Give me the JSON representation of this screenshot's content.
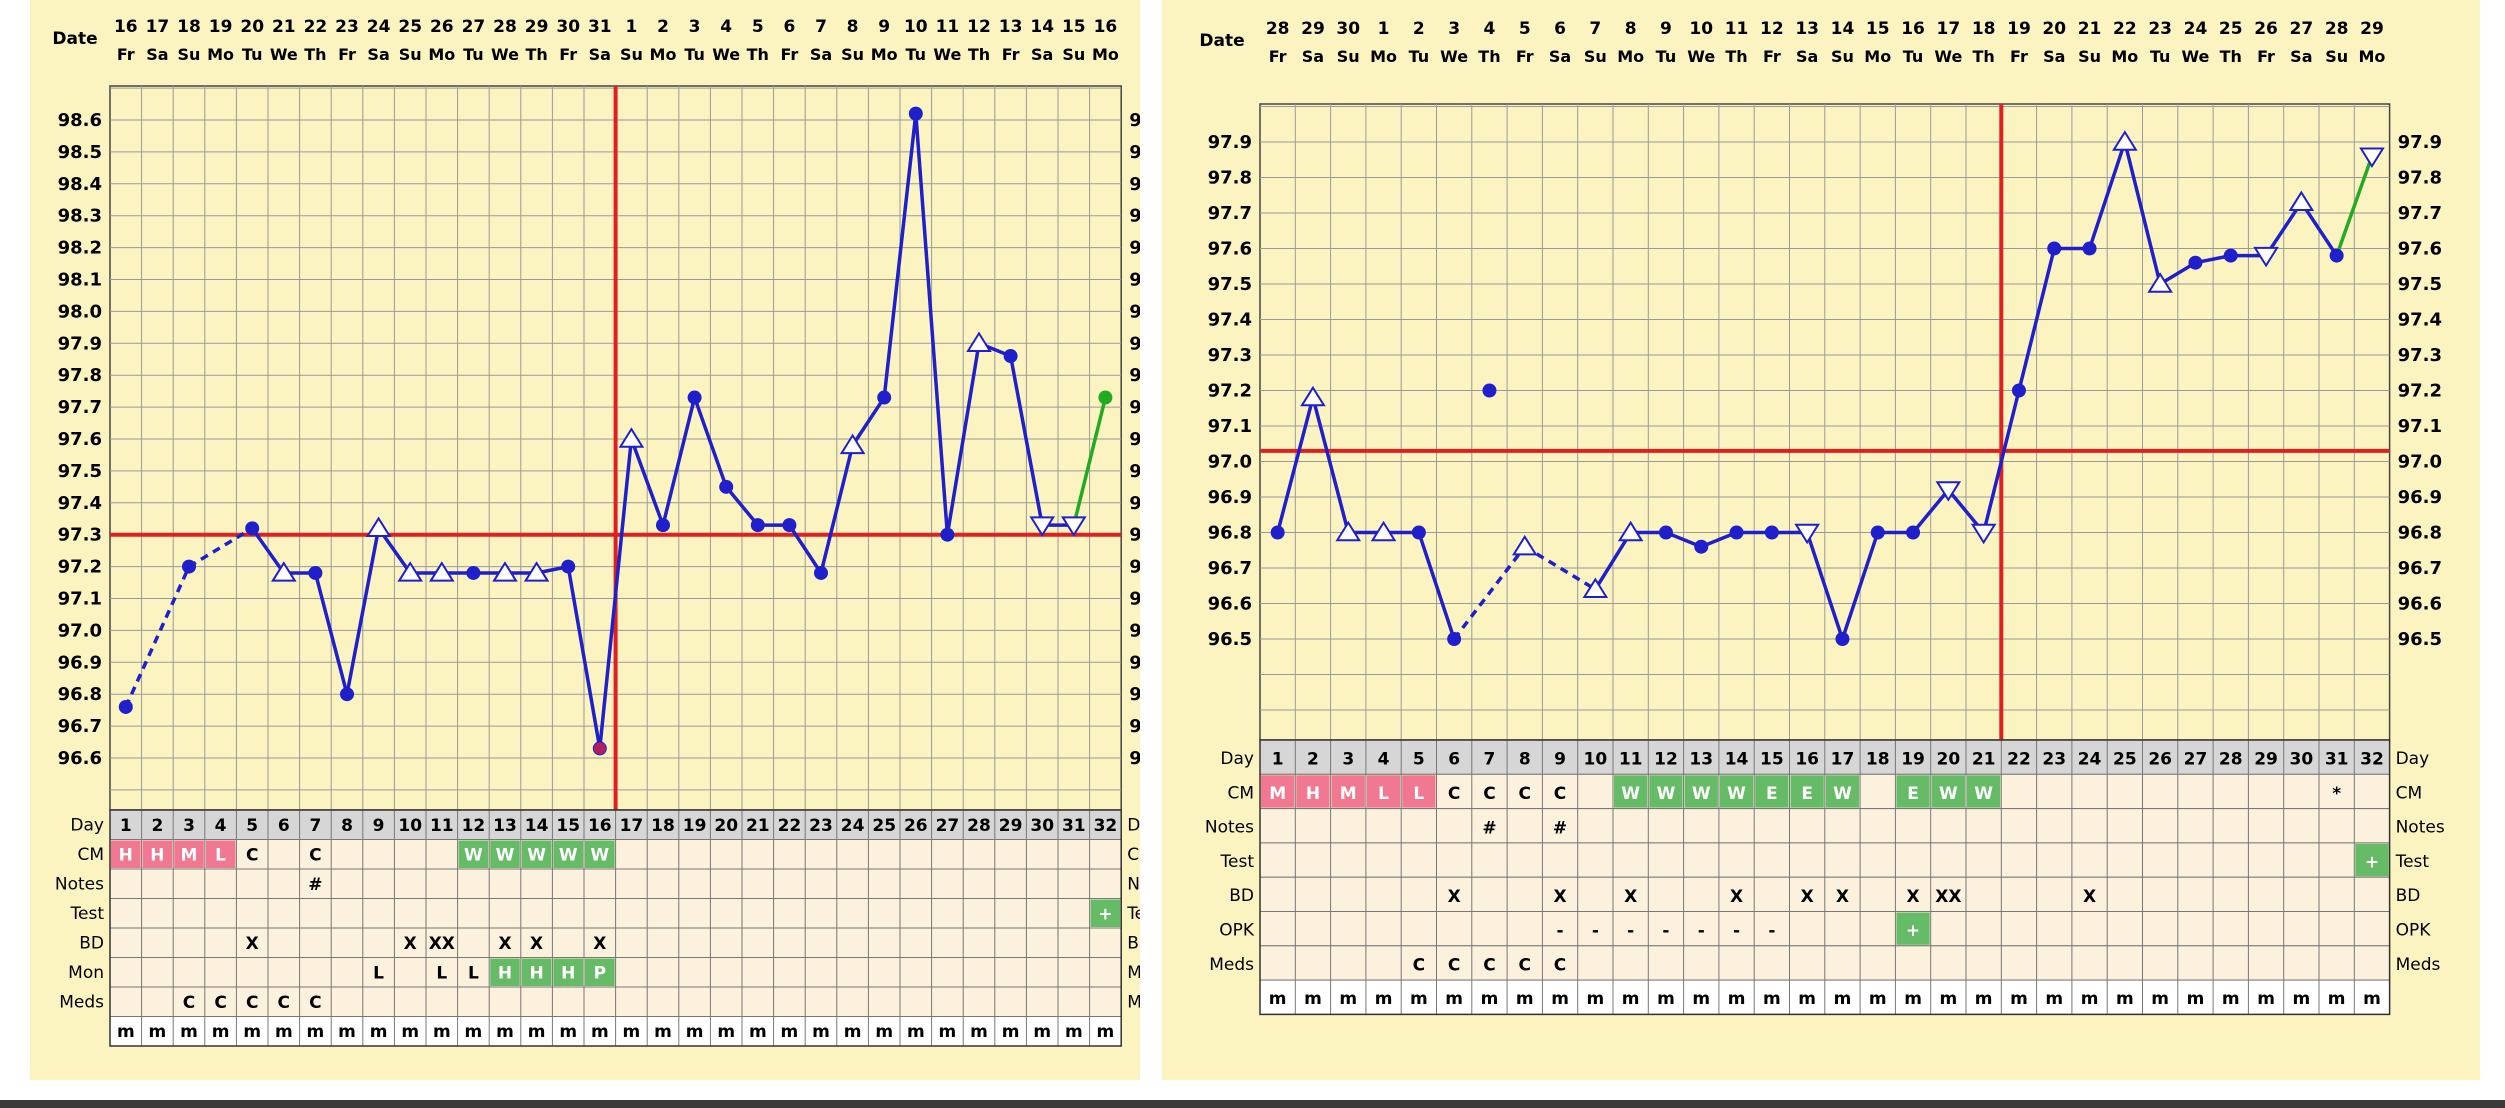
{
  "charts": [
    {
      "id": "left",
      "date_label": "Date",
      "dates": [
        "16",
        "17",
        "18",
        "19",
        "20",
        "21",
        "22",
        "23",
        "24",
        "25",
        "26",
        "27",
        "28",
        "29",
        "30",
        "31",
        "1",
        "2",
        "3",
        "4",
        "5",
        "6",
        "7",
        "8",
        "9",
        "10",
        "11",
        "12",
        "13",
        "14",
        "15",
        "16"
      ],
      "weekdays": [
        "Fr",
        "Sa",
        "Su",
        "Mo",
        "Tu",
        "We",
        "Th",
        "Fr",
        "Sa",
        "Su",
        "Mo",
        "Tu",
        "We",
        "Th",
        "Fr",
        "Sa",
        "Su",
        "Mo",
        "Tu",
        "We",
        "Th",
        "Fr",
        "Sa",
        "Su",
        "Mo",
        "Tu",
        "We",
        "Th",
        "Fr",
        "Sa",
        "Su",
        "Mo"
      ],
      "temp_ticks": [
        "98.6",
        "98.5",
        "98.4",
        "98.3",
        "98.2",
        "98.1",
        "98.0",
        "97.9",
        "97.8",
        "97.7",
        "97.6",
        "97.5",
        "97.4",
        "97.3",
        "97.2",
        "97.1",
        "97.0",
        "96.9",
        "96.8",
        "96.7",
        "96.6"
      ],
      "row_labels": [
        "Day",
        "CM",
        "Notes",
        "Test",
        "BD",
        "Mon",
        "Meds"
      ],
      "rows": {
        "day": [
          "1",
          "2",
          "3",
          "4",
          "5",
          "6",
          "7",
          "8",
          "9",
          "10",
          "11",
          "12",
          "13",
          "14",
          "15",
          "16",
          "17",
          "18",
          "19",
          "20",
          "21",
          "22",
          "23",
          "24",
          "25",
          "26",
          "27",
          "28",
          "29",
          "30",
          "31",
          "32"
        ],
        "cm": [
          "H",
          "H",
          "M",
          "L",
          "C",
          "",
          "C",
          "",
          "",
          "",
          "",
          "W",
          "W",
          "W",
          "W",
          "W",
          "",
          "",
          "",
          "",
          "",
          "",
          "",
          "",
          "",
          "",
          "",
          "",
          "",
          "",
          "",
          ""
        ],
        "notes": [
          "",
          "",
          "",
          "",
          "",
          "",
          "#",
          "",
          "",
          "",
          "",
          "",
          "",
          "",
          "",
          "",
          "",
          "",
          "",
          "",
          "",
          "",
          "",
          "",
          "",
          "",
          "",
          "",
          "",
          "",
          "",
          ""
        ],
        "test": [
          "",
          "",
          "",
          "",
          "",
          "",
          "",
          "",
          "",
          "",
          "",
          "",
          "",
          "",
          "",
          "",
          "",
          "",
          "",
          "",
          "",
          "",
          "",
          "",
          "",
          "",
          "",
          "",
          "",
          "",
          "",
          "+"
        ],
        "bd": [
          "",
          "",
          "",
          "",
          "X",
          "",
          "",
          "",
          "",
          "X",
          "XX",
          "",
          "X",
          "X",
          "",
          "X",
          "",
          "",
          "",
          "",
          "",
          "",
          "",
          "",
          "",
          "",
          "",
          "",
          "",
          "",
          "",
          ""
        ],
        "mon": [
          "",
          "",
          "",
          "",
          "",
          "",
          "",
          "",
          "L",
          "",
          "L",
          "L",
          "H",
          "H",
          "H",
          "P",
          "",
          "",
          "",
          "",
          "",
          "",
          "",
          "",
          "",
          "",
          "",
          "",
          "",
          "",
          "",
          ""
        ],
        "meds": [
          "",
          "",
          "C",
          "C",
          "C",
          "C",
          "C",
          "",
          "",
          "",
          "",
          "",
          "",
          "",
          "",
          "",
          "",
          "",
          "",
          "",
          "",
          "",
          "",
          "",
          "",
          "",
          "",
          "",
          "",
          "",
          "",
          ""
        ]
      },
      "last_row": [
        "m",
        "m",
        "m",
        "m",
        "m",
        "m",
        "m",
        "m",
        "m",
        "m",
        "m",
        "m",
        "m",
        "m",
        "m",
        "m",
        "m",
        "m",
        "m",
        "m",
        "m",
        "m",
        "m",
        "m",
        "m",
        "m",
        "m",
        "m",
        "m",
        "m",
        "m",
        "m"
      ]
    },
    {
      "id": "right",
      "date_label": "Date",
      "dates": [
        "28",
        "29",
        "30",
        "1",
        "2",
        "3",
        "4",
        "5",
        "6",
        "7",
        "8",
        "9",
        "10",
        "11",
        "12",
        "13",
        "14",
        "15",
        "16",
        "17",
        "18",
        "19",
        "20",
        "21",
        "22",
        "23",
        "24",
        "25",
        "26",
        "27",
        "28",
        "29"
      ],
      "weekdays": [
        "Fr",
        "Sa",
        "Su",
        "Mo",
        "Tu",
        "We",
        "Th",
        "Fr",
        "Sa",
        "Su",
        "Mo",
        "Tu",
        "We",
        "Th",
        "Fr",
        "Sa",
        "Su",
        "Mo",
        "Tu",
        "We",
        "Th",
        "Fr",
        "Sa",
        "Su",
        "Mo",
        "Tu",
        "We",
        "Th",
        "Fr",
        "Sa",
        "Su",
        "Mo"
      ],
      "temp_ticks": [
        "97.9",
        "97.8",
        "97.7",
        "97.6",
        "97.5",
        "97.4",
        "97.3",
        "97.2",
        "97.1",
        "97.0",
        "96.9",
        "96.8",
        "96.7",
        "96.6",
        "96.5"
      ],
      "row_labels": [
        "Day",
        "CM",
        "Notes",
        "Test",
        "BD",
        "OPK",
        "Meds"
      ],
      "rows": {
        "day": [
          "1",
          "2",
          "3",
          "4",
          "5",
          "6",
          "7",
          "8",
          "9",
          "10",
          "11",
          "12",
          "13",
          "14",
          "15",
          "16",
          "17",
          "18",
          "19",
          "20",
          "21",
          "22",
          "23",
          "24",
          "25",
          "26",
          "27",
          "28",
          "29",
          "30",
          "31",
          "32"
        ],
        "cm": [
          "M",
          "H",
          "M",
          "L",
          "L",
          "C",
          "C",
          "C",
          "C",
          "",
          "W",
          "W",
          "W",
          "W",
          "E",
          "E",
          "W",
          "",
          "E",
          "W",
          "W",
          "",
          "",
          "",
          "",
          "",
          "",
          "",
          "",
          "",
          "*",
          ""
        ],
        "notes": [
          "",
          "",
          "",
          "",
          "",
          "",
          "#",
          "",
          "#",
          "",
          "",
          "",
          "",
          "",
          "",
          "",
          "",
          "",
          "",
          "",
          "",
          "",
          "",
          "",
          "",
          "",
          "",
          "",
          "",
          "",
          "",
          ""
        ],
        "test": [
          "",
          "",
          "",
          "",
          "",
          "",
          "",
          "",
          "",
          "",
          "",
          "",
          "",
          "",
          "",
          "",
          "",
          "",
          "",
          "",
          "",
          "",
          "",
          "",
          "",
          "",
          "",
          "",
          "",
          "",
          "",
          "+"
        ],
        "bd": [
          "",
          "",
          "",
          "",
          "",
          "X",
          "",
          "",
          "X",
          "",
          "X",
          "",
          "",
          "X",
          "",
          "X",
          "X",
          "",
          "X",
          "XX",
          "",
          "",
          "",
          "X",
          "",
          "",
          "",
          "",
          "",
          "",
          "",
          ""
        ],
        "opk": [
          "",
          "",
          "",
          "",
          "",
          "",
          "",
          "",
          "-",
          "-",
          "-",
          "-",
          "-",
          "-",
          "-",
          "",
          "",
          "",
          "+",
          "",
          "",
          "",
          "",
          "",
          "",
          "",
          "",
          "",
          "",
          "",
          "",
          ""
        ],
        "meds": [
          "",
          "",
          "",
          "",
          "C",
          "C",
          "C",
          "C",
          "C",
          "",
          "",
          "",
          "",
          "",
          "",
          "",
          "",
          "",
          "",
          "",
          "",
          "",
          "",
          "",
          "",
          "",
          "",
          "",
          "",
          "",
          "",
          ""
        ]
      },
      "last_row": [
        "m",
        "m",
        "m",
        "m",
        "m",
        "m",
        "m",
        "m",
        "m",
        "m",
        "m",
        "m",
        "m",
        "m",
        "m",
        "m",
        "m",
        "m",
        "m",
        "m",
        "m",
        "m",
        "m",
        "m",
        "m",
        "m",
        "m",
        "m",
        "m",
        "m",
        "m",
        "m"
      ]
    }
  ],
  "chart_data": [
    {
      "type": "line",
      "x": [
        1,
        2,
        3,
        4,
        5,
        6,
        7,
        8,
        9,
        10,
        11,
        12,
        13,
        14,
        15,
        16,
        17,
        18,
        19,
        20,
        21,
        22,
        23,
        24,
        25,
        26,
        27,
        28,
        29,
        30,
        31,
        32
      ],
      "series": [
        {
          "values": [
            96.76,
            null,
            97.2,
            null,
            97.32,
            97.18,
            97.18,
            96.8,
            97.32,
            97.18,
            97.18,
            97.18,
            97.18,
            97.18,
            97.2,
            96.63,
            97.6,
            97.33,
            97.73,
            97.45,
            97.33,
            97.33,
            97.18,
            97.58,
            97.73,
            98.62,
            97.3,
            97.9,
            97.86,
            97.33,
            97.33,
            97.73
          ]
        }
      ],
      "ylim": [
        96.5,
        98.7
      ],
      "coverline": 97.3,
      "ovulation_day": 16,
      "colors": {
        "line": "#1f1fcc",
        "coverline": "#e02020",
        "test_line": "#22aa22",
        "grid": "#999999",
        "background": "#fcf4c0",
        "positive": "#66bb66",
        "highlight": "#f07890"
      }
    },
    {
      "type": "line",
      "x": [
        1,
        2,
        3,
        4,
        5,
        6,
        7,
        8,
        9,
        10,
        11,
        12,
        13,
        14,
        15,
        16,
        17,
        18,
        19,
        20,
        21,
        22,
        23,
        24,
        25,
        26,
        27,
        28,
        29,
        30,
        31,
        32
      ],
      "series": [
        {
          "values": [
            96.8,
            97.18,
            96.8,
            96.8,
            96.8,
            96.5,
            97.2,
            96.76,
            null,
            96.64,
            96.8,
            96.8,
            96.76,
            96.8,
            96.8,
            96.8,
            96.5,
            96.8,
            96.8,
            96.92,
            96.8,
            97.2,
            97.6,
            97.6,
            97.9,
            97.5,
            97.56,
            97.58,
            97.58,
            97.73,
            97.58,
            97.86
          ]
        }
      ],
      "ylim": [
        96.4,
        98.0
      ],
      "coverline": 97.03,
      "ovulation_day": 21,
      "colors": {
        "line": "#1f1fcc",
        "coverline": "#e02020",
        "test_line": "#22aa22",
        "grid": "#999999",
        "background": "#fcf4c0",
        "positive": "#66bb66",
        "highlight": "#f07890"
      }
    }
  ]
}
